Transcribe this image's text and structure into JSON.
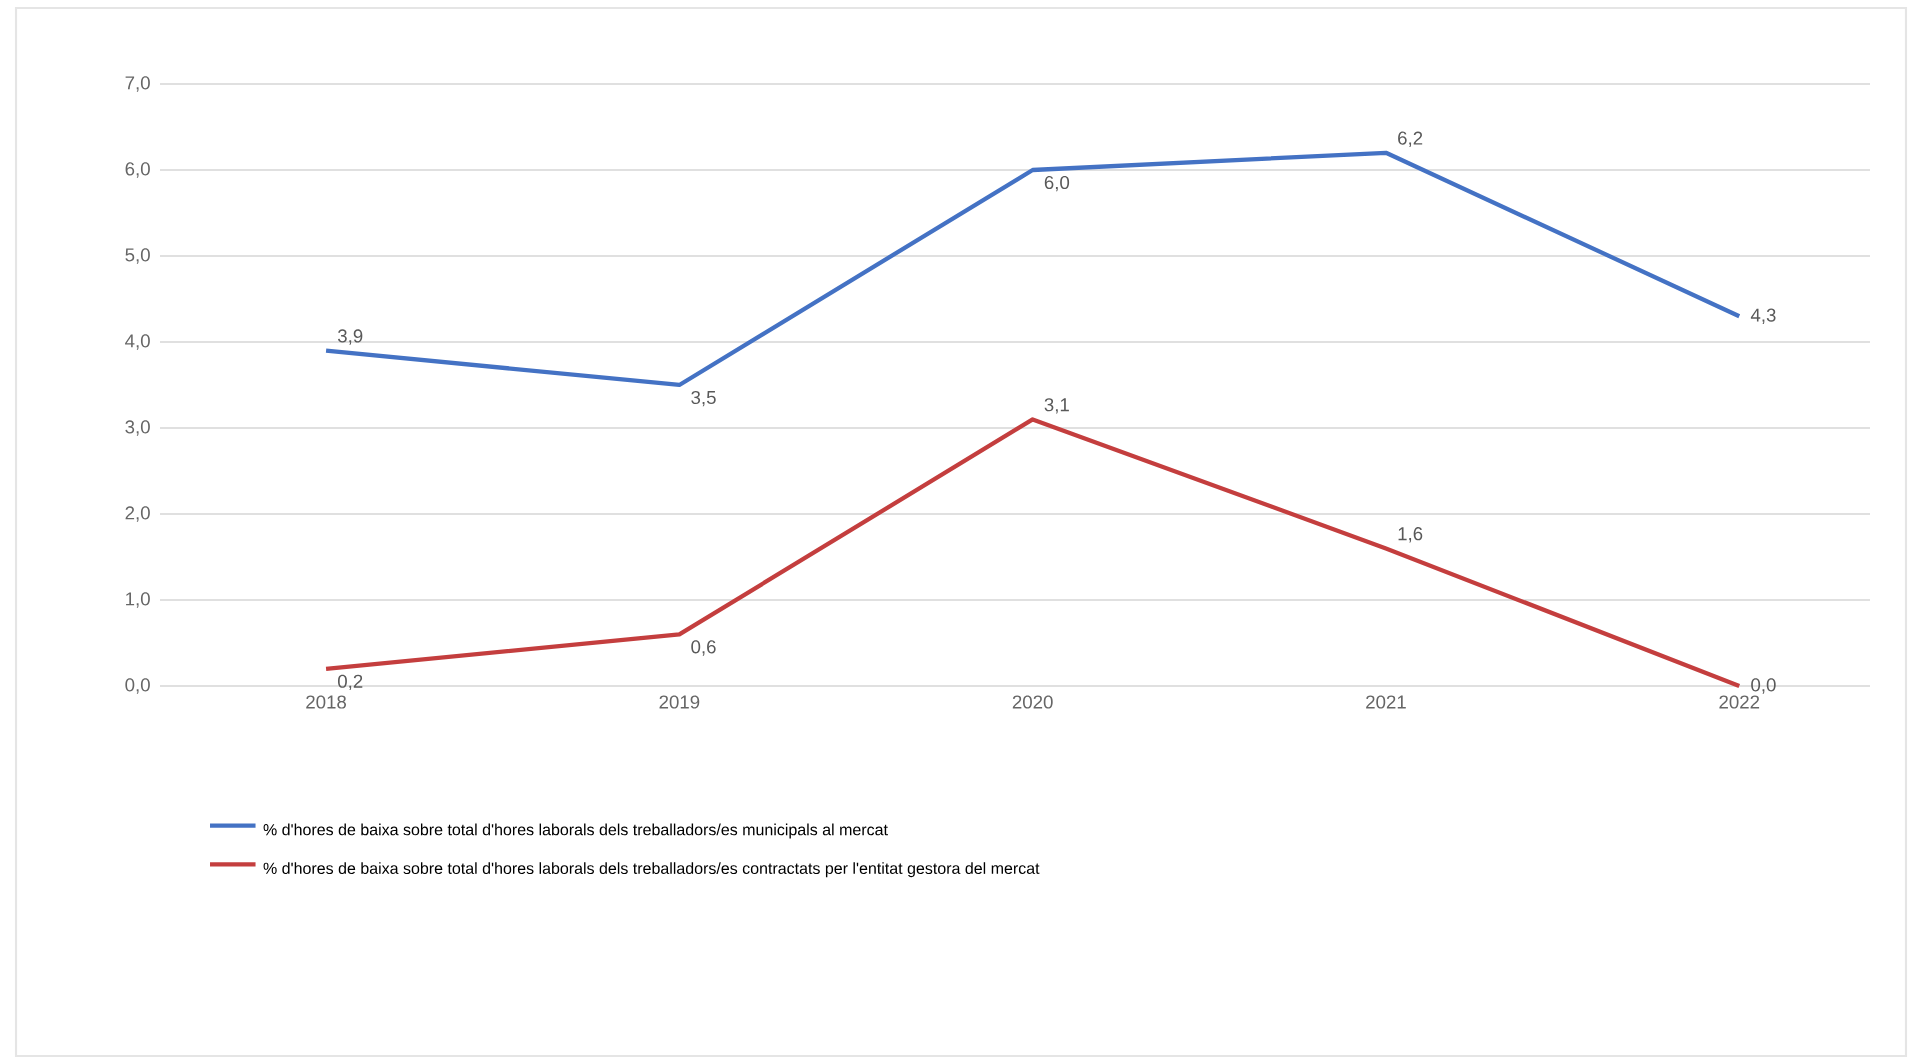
{
  "chart_data": {
    "type": "line",
    "categories": [
      "2018",
      "2019",
      "2020",
      "2021",
      "2022"
    ],
    "series": [
      {
        "name": "% d'hores de baixa sobre total d'hores laborals dels treballadors/es municipals al mercat",
        "color": "#4472c4",
        "values": [
          3.9,
          3.5,
          6.0,
          6.2,
          4.3
        ],
        "value_labels": [
          "3,9",
          "3,5",
          "6,0",
          "6,2",
          "4,3"
        ]
      },
      {
        "name": "% d'hores de baixa sobre total d'hores laborals dels treballadors/es contractats per l'entitat gestora del mercat",
        "color": "#c43e3e",
        "values": [
          0.2,
          0.6,
          3.1,
          1.6,
          0.0
        ],
        "value_labels": [
          "0,2",
          "0,6",
          "3,1",
          "1,6",
          "0,0"
        ]
      }
    ],
    "ylim": [
      0,
      7
    ],
    "yticks": [
      {
        "value": 0,
        "label": "0,0"
      },
      {
        "value": 1,
        "label": "1,0"
      },
      {
        "value": 2,
        "label": "2,0"
      },
      {
        "value": 3,
        "label": "3,0"
      },
      {
        "value": 4,
        "label": "4,0"
      },
      {
        "value": 5,
        "label": "5,0"
      },
      {
        "value": 6,
        "label": "6,0"
      },
      {
        "value": 7,
        "label": "7,0"
      }
    ],
    "grid": "y",
    "legend": "bottom"
  }
}
